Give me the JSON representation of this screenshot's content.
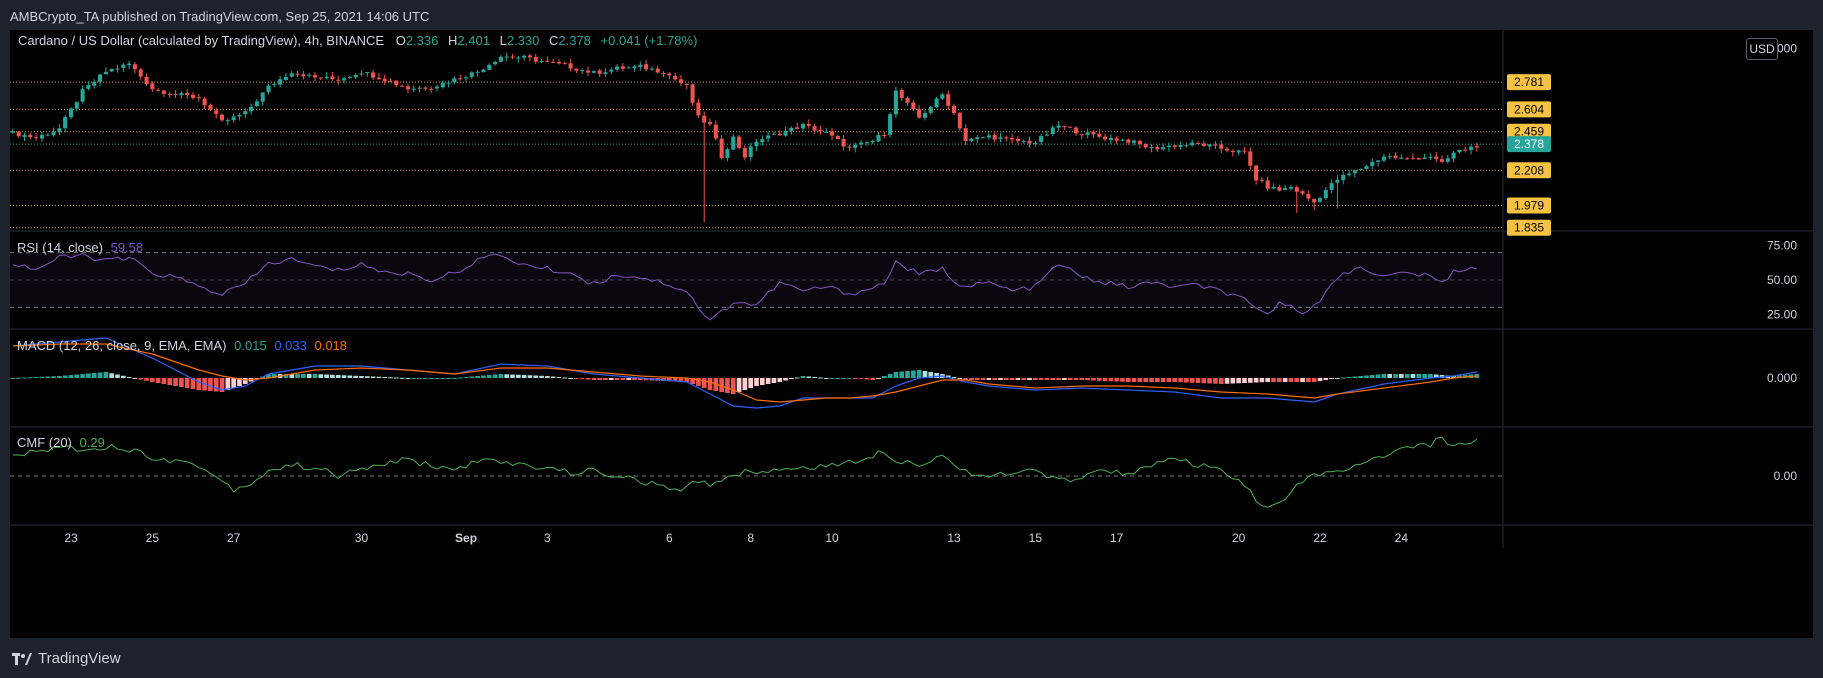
{
  "header": {
    "publisher_line": "AMBCrypto_TA published on TradingView.com, Sep 25, 2021 14:06 UTC"
  },
  "main_legend": {
    "symbol": "Cardano / US Dollar (calculated by TradingView), 4h, BINANCE",
    "o_label": "O",
    "o_value": "2.336",
    "h_label": "H",
    "h_value": "2.401",
    "l_label": "L",
    "l_value": "2.330",
    "c_label": "C",
    "c_value": "2.378",
    "change": "+0.041 (+1.78%)"
  },
  "currency_button": "USD",
  "indicators": {
    "rsi": {
      "label": "RSI (14, close)",
      "value": "59.58"
    },
    "macd": {
      "label": "MACD (12, 26, close, 9, EMA, EMA)",
      "v1": "0.015",
      "v2": "0.033",
      "v3": "0.018"
    },
    "cmf": {
      "label": "CMF (20)",
      "value": "0.29"
    }
  },
  "footer": {
    "brand": "TradingView"
  },
  "colors": {
    "background": "#000000",
    "frame": "#1e222d",
    "up": "#26a69a",
    "down": "#ef5350",
    "level_line": "#f5c242",
    "rsi_line": "#7e57c2",
    "macd_line": "#2962ff",
    "signal_line": "#ff6d00",
    "cmf_line": "#4caf50"
  },
  "chart_data": {
    "type": "candlestick",
    "symbol": "ADA/USD",
    "interval": "4h",
    "price_axis": {
      "ticks": [
        3.0
      ],
      "ylim": [
        1.82,
        3.12
      ]
    },
    "x_ticks": [
      "23",
      "25",
      "27",
      "30",
      "Sep",
      "3",
      "6",
      "8",
      "10",
      "13",
      "15",
      "17",
      "20",
      "22",
      "24"
    ],
    "x_tick_bar_index": [
      10,
      24,
      38,
      60,
      78,
      92,
      113,
      127,
      141,
      162,
      176,
      190,
      211,
      225,
      239
    ],
    "levels": [
      2.781,
      2.604,
      2.459,
      2.208,
      1.979,
      1.835
    ],
    "last_price": 2.378,
    "close_points": [
      [
        0,
        2.45
      ],
      [
        4,
        2.42
      ],
      [
        8,
        2.48
      ],
      [
        12,
        2.72
      ],
      [
        16,
        2.85
      ],
      [
        20,
        2.9
      ],
      [
        24,
        2.74
      ],
      [
        28,
        2.7
      ],
      [
        32,
        2.68
      ],
      [
        36,
        2.52
      ],
      [
        40,
        2.58
      ],
      [
        44,
        2.75
      ],
      [
        48,
        2.85
      ],
      [
        52,
        2.81
      ],
      [
        56,
        2.8
      ],
      [
        60,
        2.85
      ],
      [
        64,
        2.8
      ],
      [
        68,
        2.74
      ],
      [
        72,
        2.75
      ],
      [
        76,
        2.8
      ],
      [
        80,
        2.85
      ],
      [
        84,
        2.95
      ],
      [
        88,
        2.94
      ],
      [
        92,
        2.91
      ],
      [
        96,
        2.88
      ],
      [
        100,
        2.84
      ],
      [
        104,
        2.87
      ],
      [
        108,
        2.88
      ],
      [
        112,
        2.85
      ],
      [
        116,
        2.75
      ],
      [
        118,
        2.55
      ],
      [
        120,
        2.5
      ],
      [
        122,
        2.3
      ],
      [
        124,
        2.42
      ],
      [
        126,
        2.3
      ],
      [
        128,
        2.4
      ],
      [
        132,
        2.45
      ],
      [
        136,
        2.5
      ],
      [
        140,
        2.45
      ],
      [
        144,
        2.35
      ],
      [
        148,
        2.4
      ],
      [
        150,
        2.45
      ],
      [
        152,
        2.72
      ],
      [
        156,
        2.55
      ],
      [
        160,
        2.7
      ],
      [
        162,
        2.58
      ],
      [
        164,
        2.4
      ],
      [
        168,
        2.43
      ],
      [
        172,
        2.4
      ],
      [
        176,
        2.39
      ],
      [
        180,
        2.5
      ],
      [
        184,
        2.45
      ],
      [
        188,
        2.42
      ],
      [
        192,
        2.4
      ],
      [
        196,
        2.35
      ],
      [
        200,
        2.37
      ],
      [
        204,
        2.38
      ],
      [
        208,
        2.35
      ],
      [
        212,
        2.32
      ],
      [
        214,
        2.15
      ],
      [
        216,
        2.1
      ],
      [
        218,
        2.08
      ],
      [
        220,
        2.1
      ],
      [
        222,
        2.05
      ],
      [
        224,
        2.0
      ],
      [
        226,
        2.08
      ],
      [
        228,
        2.15
      ],
      [
        232,
        2.22
      ],
      [
        236,
        2.3
      ],
      [
        240,
        2.28
      ],
      [
        244,
        2.3
      ],
      [
        246,
        2.25
      ],
      [
        248,
        2.32
      ],
      [
        252,
        2.37
      ]
    ],
    "wick_extremes": [
      [
        119,
        1.87
      ],
      [
        221,
        1.93
      ],
      [
        224,
        1.95
      ],
      [
        228,
        1.96
      ]
    ],
    "rsi": {
      "ticks": [
        75.0,
        50.0,
        25.0
      ],
      "ylim": [
        15,
        85
      ],
      "bands": [
        70,
        30
      ],
      "points": [
        [
          0,
          62
        ],
        [
          4,
          58
        ],
        [
          8,
          66
        ],
        [
          12,
          68
        ],
        [
          16,
          64
        ],
        [
          20,
          66
        ],
        [
          24,
          55
        ],
        [
          28,
          52
        ],
        [
          32,
          45
        ],
        [
          36,
          40
        ],
        [
          40,
          47
        ],
        [
          44,
          62
        ],
        [
          48,
          65
        ],
        [
          52,
          60
        ],
        [
          56,
          57
        ],
        [
          60,
          62
        ],
        [
          64,
          55
        ],
        [
          68,
          55
        ],
        [
          72,
          50
        ],
        [
          76,
          55
        ],
        [
          80,
          65
        ],
        [
          84,
          68
        ],
        [
          88,
          61
        ],
        [
          92,
          58
        ],
        [
          96,
          55
        ],
        [
          100,
          47
        ],
        [
          104,
          54
        ],
        [
          108,
          52
        ],
        [
          112,
          48
        ],
        [
          116,
          42
        ],
        [
          118,
          30
        ],
        [
          120,
          20
        ],
        [
          124,
          34
        ],
        [
          128,
          32
        ],
        [
          132,
          48
        ],
        [
          136,
          42
        ],
        [
          140,
          45
        ],
        [
          144,
          40
        ],
        [
          148,
          44
        ],
        [
          150,
          48
        ],
        [
          152,
          63
        ],
        [
          156,
          54
        ],
        [
          160,
          58
        ],
        [
          162,
          50
        ],
        [
          164,
          45
        ],
        [
          168,
          48
        ],
        [
          172,
          42
        ],
        [
          176,
          45
        ],
        [
          180,
          62
        ],
        [
          184,
          52
        ],
        [
          188,
          48
        ],
        [
          192,
          45
        ],
        [
          196,
          48
        ],
        [
          200,
          45
        ],
        [
          204,
          46
        ],
        [
          208,
          42
        ],
        [
          212,
          35
        ],
        [
          214,
          28
        ],
        [
          216,
          25
        ],
        [
          218,
          34
        ],
        [
          220,
          30
        ],
        [
          222,
          27
        ],
        [
          224,
          32
        ],
        [
          226,
          40
        ],
        [
          228,
          52
        ],
        [
          232,
          60
        ],
        [
          236,
          52
        ],
        [
          240,
          56
        ],
        [
          244,
          52
        ],
        [
          246,
          48
        ],
        [
          248,
          56
        ],
        [
          252,
          60
        ]
      ]
    },
    "macd": {
      "ticks": [
        0.0
      ],
      "ylim": [
        -0.12,
        0.12
      ],
      "macd_line": [
        [
          0,
          0.08
        ],
        [
          8,
          0.09
        ],
        [
          16,
          0.1
        ],
        [
          24,
          0.05
        ],
        [
          32,
          -0.01
        ],
        [
          36,
          -0.03
        ],
        [
          40,
          -0.02
        ],
        [
          44,
          0.01
        ],
        [
          52,
          0.03
        ],
        [
          60,
          0.03
        ],
        [
          68,
          0.02
        ],
        [
          76,
          0.01
        ],
        [
          84,
          0.035
        ],
        [
          92,
          0.03
        ],
        [
          100,
          0.01
        ],
        [
          108,
          0.0
        ],
        [
          116,
          -0.01
        ],
        [
          120,
          -0.04
        ],
        [
          124,
          -0.07
        ],
        [
          128,
          -0.075
        ],
        [
          132,
          -0.07
        ],
        [
          136,
          -0.05
        ],
        [
          140,
          -0.05
        ],
        [
          144,
          -0.05
        ],
        [
          148,
          -0.05
        ],
        [
          152,
          -0.02
        ],
        [
          156,
          0.0
        ],
        [
          160,
          0.005
        ],
        [
          164,
          -0.01
        ],
        [
          168,
          -0.02
        ],
        [
          176,
          -0.03
        ],
        [
          184,
          -0.025
        ],
        [
          192,
          -0.03
        ],
        [
          200,
          -0.035
        ],
        [
          208,
          -0.05
        ],
        [
          216,
          -0.05
        ],
        [
          220,
          -0.055
        ],
        [
          224,
          -0.06
        ],
        [
          228,
          -0.04
        ],
        [
          236,
          -0.015
        ],
        [
          244,
          0.0
        ],
        [
          248,
          0.005
        ],
        [
          252,
          0.015
        ]
      ],
      "signal_line": [
        [
          0,
          0.08
        ],
        [
          8,
          0.085
        ],
        [
          16,
          0.085
        ],
        [
          24,
          0.06
        ],
        [
          32,
          0.02
        ],
        [
          36,
          0.005
        ],
        [
          40,
          -0.005
        ],
        [
          44,
          0.0
        ],
        [
          52,
          0.02
        ],
        [
          60,
          0.025
        ],
        [
          68,
          0.02
        ],
        [
          76,
          0.01
        ],
        [
          84,
          0.025
        ],
        [
          92,
          0.025
        ],
        [
          100,
          0.015
        ],
        [
          108,
          0.005
        ],
        [
          116,
          0.0
        ],
        [
          120,
          -0.01
        ],
        [
          124,
          -0.03
        ],
        [
          128,
          -0.055
        ],
        [
          132,
          -0.06
        ],
        [
          136,
          -0.055
        ],
        [
          140,
          -0.05
        ],
        [
          144,
          -0.05
        ],
        [
          148,
          -0.045
        ],
        [
          152,
          -0.035
        ],
        [
          156,
          -0.02
        ],
        [
          160,
          -0.005
        ],
        [
          164,
          -0.005
        ],
        [
          168,
          -0.015
        ],
        [
          176,
          -0.025
        ],
        [
          184,
          -0.02
        ],
        [
          192,
          -0.02
        ],
        [
          200,
          -0.025
        ],
        [
          208,
          -0.035
        ],
        [
          216,
          -0.04
        ],
        [
          220,
          -0.045
        ],
        [
          224,
          -0.05
        ],
        [
          228,
          -0.04
        ],
        [
          236,
          -0.025
        ],
        [
          244,
          -0.01
        ],
        [
          248,
          0.0
        ],
        [
          252,
          0.005
        ]
      ]
    },
    "cmf": {
      "ticks": [
        0.0
      ],
      "ylim": [
        -0.45,
        0.45
      ],
      "points": [
        [
          0,
          0.2
        ],
        [
          4,
          0.22
        ],
        [
          8,
          0.28
        ],
        [
          12,
          0.25
        ],
        [
          16,
          0.28
        ],
        [
          20,
          0.25
        ],
        [
          24,
          0.18
        ],
        [
          28,
          0.14
        ],
        [
          32,
          0.1
        ],
        [
          36,
          -0.05
        ],
        [
          38,
          -0.12
        ],
        [
          40,
          -0.1
        ],
        [
          44,
          0.05
        ],
        [
          48,
          0.1
        ],
        [
          52,
          0.08
        ],
        [
          56,
          0.0
        ],
        [
          60,
          0.06
        ],
        [
          64,
          0.12
        ],
        [
          68,
          0.15
        ],
        [
          72,
          0.1
        ],
        [
          76,
          0.05
        ],
        [
          80,
          0.15
        ],
        [
          84,
          0.12
        ],
        [
          88,
          0.1
        ],
        [
          92,
          0.08
        ],
        [
          96,
          0.03
        ],
        [
          100,
          0.05
        ],
        [
          104,
          0.0
        ],
        [
          108,
          -0.05
        ],
        [
          112,
          -0.1
        ],
        [
          114,
          -0.15
        ],
        [
          116,
          -0.1
        ],
        [
          118,
          -0.05
        ],
        [
          120,
          -0.08
        ],
        [
          124,
          0.02
        ],
        [
          128,
          0.05
        ],
        [
          132,
          0.05
        ],
        [
          136,
          0.08
        ],
        [
          140,
          0.1
        ],
        [
          144,
          0.12
        ],
        [
          148,
          0.2
        ],
        [
          150,
          0.24
        ],
        [
          152,
          0.15
        ],
        [
          156,
          0.12
        ],
        [
          160,
          0.18
        ],
        [
          164,
          0.05
        ],
        [
          168,
          0.0
        ],
        [
          172,
          0.02
        ],
        [
          176,
          0.05
        ],
        [
          180,
          -0.05
        ],
        [
          184,
          0.0
        ],
        [
          188,
          0.05
        ],
        [
          192,
          0.03
        ],
        [
          196,
          0.1
        ],
        [
          200,
          0.15
        ],
        [
          204,
          0.1
        ],
        [
          208,
          0.05
        ],
        [
          212,
          -0.1
        ],
        [
          214,
          -0.22
        ],
        [
          216,
          -0.3
        ],
        [
          218,
          -0.25
        ],
        [
          220,
          -0.15
        ],
        [
          222,
          -0.05
        ],
        [
          224,
          0.0
        ],
        [
          226,
          0.05
        ],
        [
          228,
          0.02
        ],
        [
          232,
          0.1
        ],
        [
          236,
          0.2
        ],
        [
          240,
          0.25
        ],
        [
          244,
          0.3
        ],
        [
          246,
          0.35
        ],
        [
          248,
          0.28
        ],
        [
          252,
          0.33
        ]
      ]
    }
  }
}
